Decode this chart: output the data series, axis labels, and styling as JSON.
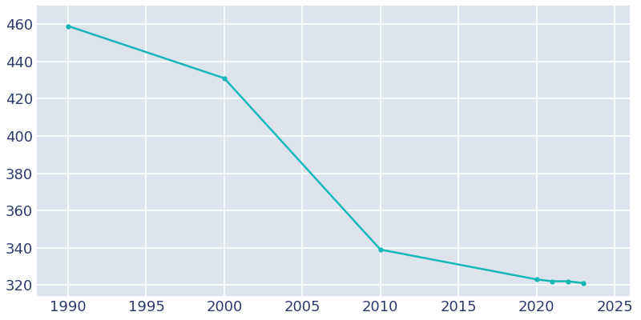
{
  "years": [
    1990,
    2000,
    2010,
    2020,
    2021,
    2022,
    2023
  ],
  "population": [
    459,
    431,
    339,
    323,
    322,
    322,
    321
  ],
  "line_color": "#17B8B8",
  "marker": "o",
  "marker_size": 3.5,
  "background_color": "#DDE4EE",
  "figure_background": "#FFFFFF",
  "grid_color": "#FFFFFF",
  "xlabel": "",
  "ylabel": "",
  "xlim": [
    1988,
    2026
  ],
  "ylim": [
    314,
    470
  ],
  "yticks": [
    320,
    340,
    360,
    380,
    400,
    420,
    440,
    460
  ],
  "xticks": [
    1990,
    1995,
    2000,
    2005,
    2010,
    2015,
    2020,
    2025
  ],
  "tick_label_color": "#2D3A6B",
  "tick_fontsize": 13,
  "linewidth": 1.8
}
